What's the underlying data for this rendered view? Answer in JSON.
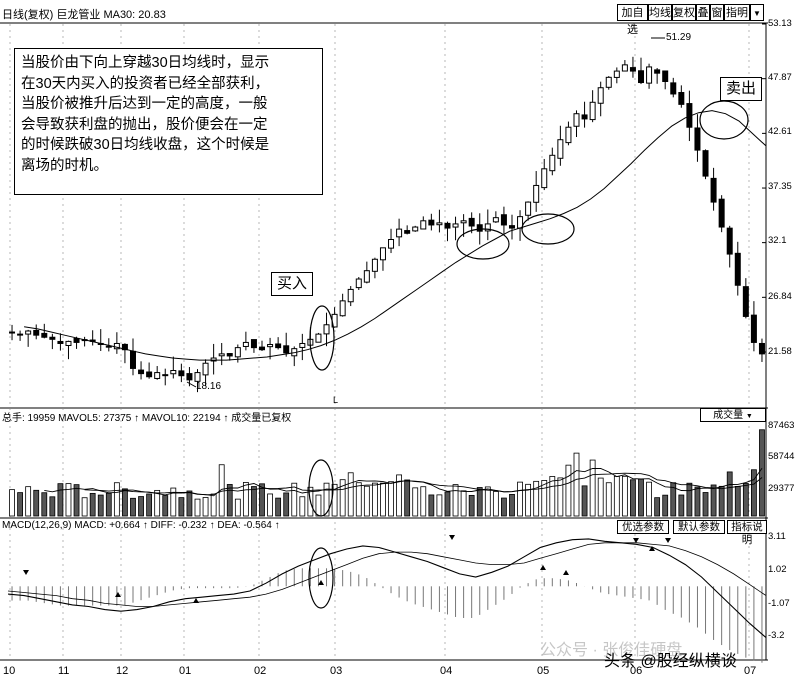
{
  "header": {
    "title": "日线(复权) 巨龙管业 MA30: 20.83",
    "buttons": [
      "加自选",
      "均线",
      "复权",
      "叠",
      "窗",
      "指明"
    ]
  },
  "annotation": {
    "lines": [
      "当股价由下向上穿越30日均线时，显示",
      "在30天内买入的投资者已经全部获利，",
      "当股价被推升后达到一定的高度，一般",
      "会导致获利盘的抛出，股价便会在一定",
      "的时候跌破30日均线收盘，这个时候是",
      "离场的时机。"
    ],
    "buy_label": "买入",
    "sell_label": "卖出"
  },
  "volume_panel": {
    "header": "总手: 19959 MAVOL5: 27375 ↑ MAVOL10: 22194 ↑ 成交量已复权",
    "selector": "成交量"
  },
  "macd_panel": {
    "header": "MACD(12,26,9) MACD: +0.664 ↑ DIFF: -0.232 ↑ DEA: -0.564 ↑",
    "buttons": [
      "优选参数",
      "默认参数",
      "指标说明"
    ]
  },
  "watermark": {
    "line1": "公众号 · 张俊佳硬盘",
    "line2": "头条 @股经纵横谈"
  },
  "chart_data": {
    "type": "candlestick",
    "title": "日线(复权) 巨龙管业",
    "ma_label": "MA30",
    "ma_value": 20.83,
    "x_months": [
      "10",
      "11",
      "12",
      "01",
      "02",
      "03",
      "04",
      "05",
      "06",
      "07"
    ],
    "price_axis": [
      53.13,
      47.87,
      42.61,
      37.35,
      32.1,
      26.84,
      21.58
    ],
    "annotated_high": 51.29,
    "annotated_low": 18.16,
    "price_close_series": [
      23.5,
      23.3,
      23.6,
      23.2,
      23.0,
      22.8,
      22.4,
      22.6,
      22.5,
      22.7,
      22.6,
      22.3,
      22.1,
      22.4,
      21.8,
      20.0,
      19.5,
      19.2,
      19.6,
      19.4,
      19.8,
      19.3,
      18.9,
      19.6,
      20.5,
      21.0,
      21.4,
      21.2,
      22.0,
      22.5,
      22.0,
      21.8,
      22.3,
      22.0,
      21.5,
      21.9,
      22.4,
      22.8,
      23.3,
      24.2,
      25.2,
      26.5,
      27.6,
      28.6,
      29.4,
      30.5,
      31.6,
      32.4,
      33.4,
      33.0,
      33.6,
      34.2,
      33.8,
      34.0,
      33.5,
      33.9,
      34.2,
      33.7,
      33.2,
      33.9,
      34.5,
      33.8,
      33.5,
      34.6,
      36.0,
      37.6,
      39.2,
      40.5,
      42.0,
      43.2,
      44.5,
      44.0,
      45.6,
      47.0,
      48.0,
      48.6,
      49.2,
      48.6,
      47.5,
      49.0,
      48.4,
      47.6,
      46.4,
      45.4,
      43.2,
      41.0,
      38.5,
      36.0,
      33.6,
      31.0,
      28.0,
      25.0,
      22.5,
      21.4
    ],
    "ma30_series": [
      24.0,
      23.8,
      23.5,
      23.2,
      22.9,
      22.6,
      22.3,
      22.0,
      21.7,
      21.4,
      21.2,
      21.0,
      20.9,
      20.8,
      20.8,
      20.8,
      20.9,
      21.0,
      21.1,
      21.3,
      21.5,
      21.8,
      22.2,
      22.7,
      23.3,
      24.0,
      24.8,
      25.7,
      26.6,
      27.5,
      28.4,
      29.3,
      30.2,
      31.0,
      31.8,
      32.5,
      33.2,
      33.6,
      34.0,
      34.4,
      34.9,
      35.5,
      36.3,
      37.3,
      38.5,
      39.7,
      41.0,
      42.2,
      43.3,
      44.1,
      44.6,
      44.8,
      44.5,
      43.8,
      42.6,
      41.4
    ],
    "volume_axis": [
      87463,
      58744,
      29377
    ],
    "volume_header": {
      "volume": 19959,
      "mavol5": 27375,
      "mavol10": 22194
    },
    "macd_axis": [
      3.11,
      1.02,
      -1.07,
      -3.2
    ],
    "macd_header": {
      "macd": 0.664,
      "diff": -0.232,
      "dea": -0.564
    },
    "diff_series": [
      -0.5,
      -0.6,
      -0.8,
      -1.0,
      -1.2,
      -1.3,
      -1.5,
      -1.6,
      -1.5,
      -1.3,
      -1.0,
      -0.8,
      -0.7,
      -0.6,
      -0.5,
      -0.3,
      0.2,
      0.8,
      1.3,
      1.7,
      2.1,
      2.4,
      2.6,
      2.5,
      2.2,
      1.9,
      1.6,
      1.2,
      0.8,
      0.6,
      0.9,
      1.3,
      1.9,
      2.5,
      2.8,
      3.0,
      3.05,
      2.9,
      2.8,
      2.7,
      2.5,
      2.0,
      1.4,
      0.6,
      -0.4,
      -1.4,
      -2.4,
      -3.3
    ],
    "dea_series": [
      -0.3,
      -0.4,
      -0.5,
      -0.6,
      -0.8,
      -0.9,
      -1.1,
      -1.2,
      -1.3,
      -1.3,
      -1.2,
      -1.1,
      -1.0,
      -0.9,
      -0.8,
      -0.7,
      -0.5,
      -0.2,
      0.2,
      0.6,
      1.0,
      1.4,
      1.8,
      2.1,
      2.2,
      2.2,
      2.1,
      1.9,
      1.7,
      1.5,
      1.4,
      1.4,
      1.5,
      1.8,
      2.1,
      2.4,
      2.7,
      2.8,
      2.8,
      2.8,
      2.7,
      2.6,
      2.3,
      1.9,
      1.4,
      0.8,
      0.1,
      -0.6
    ]
  }
}
